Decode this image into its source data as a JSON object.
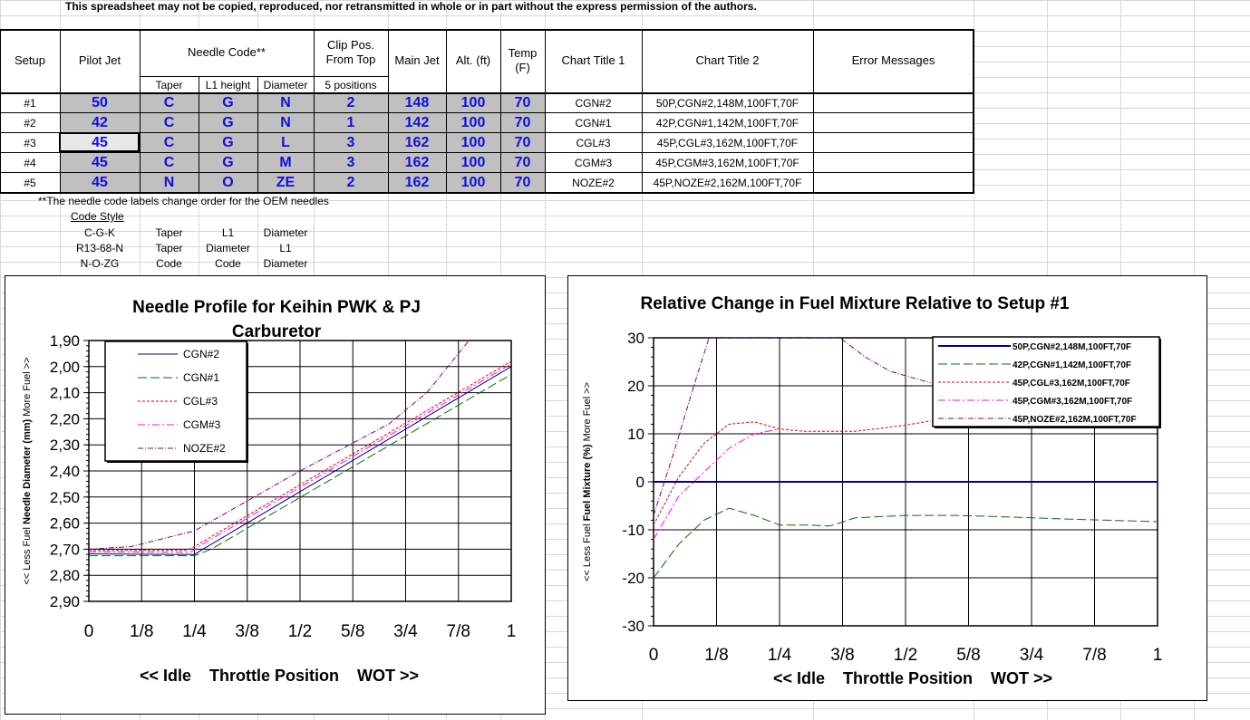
{
  "notice": "This spreadsheet may not be copied, reproduced, nor retransmitted in whole or in part without the express permission of the authors.",
  "headers": {
    "setup": "Setup",
    "pilot_jet": "Pilot Jet",
    "needle_code": "Needle Code**",
    "clip_pos": [
      "Clip Pos.",
      "From Top"
    ],
    "main_jet": "Main Jet",
    "alt": "Alt. (ft)",
    "temp": [
      "Temp",
      "(F)"
    ],
    "chart_title_1": "Chart Title 1",
    "chart_title_2": "Chart Title 2",
    "error_messages": "Error Messages",
    "taper": "Taper",
    "l1_height": "L1 height",
    "diameter": "Diameter",
    "positions": "5 positions"
  },
  "rows": [
    {
      "setup": "#1",
      "pilot": "50",
      "taper": "C",
      "l1": "G",
      "dia": "N",
      "clip": "2",
      "main": "148",
      "alt": "100",
      "temp": "70",
      "t1": "CGN#2",
      "t2": "50P,CGN#2,148M,100FT,70F"
    },
    {
      "setup": "#2",
      "pilot": "42",
      "taper": "C",
      "l1": "G",
      "dia": "N",
      "clip": "1",
      "main": "142",
      "alt": "100",
      "temp": "70",
      "t1": "CGN#1",
      "t2": "42P,CGN#1,142M,100FT,70F"
    },
    {
      "setup": "#3",
      "pilot": "45",
      "taper": "C",
      "l1": "G",
      "dia": "L",
      "clip": "3",
      "main": "162",
      "alt": "100",
      "temp": "70",
      "t1": "CGL#3",
      "t2": "45P,CGL#3,162M,100FT,70F"
    },
    {
      "setup": "#4",
      "pilot": "45",
      "taper": "C",
      "l1": "G",
      "dia": "M",
      "clip": "3",
      "main": "162",
      "alt": "100",
      "temp": "70",
      "t1": "CGM#3",
      "t2": "45P,CGM#3,162M,100FT,70F"
    },
    {
      "setup": "#5",
      "pilot": "45",
      "taper": "N",
      "l1": "O",
      "dia": "ZE",
      "clip": "2",
      "main": "162",
      "alt": "100",
      "temp": "70",
      "t1": "NOZE#2",
      "t2": "45P,NOZE#2,162M,100FT,70F"
    }
  ],
  "footnote": "**The needle code labels change order for the OEM needles",
  "code_style": {
    "title": "Code Style",
    "rows": [
      [
        "C-G-K",
        "Taper",
        "L1",
        "Diameter"
      ],
      [
        "R13-68-N",
        "Taper",
        "Diameter",
        "L1"
      ],
      [
        "N-O-ZG",
        "Code",
        "Code",
        "Diameter"
      ]
    ]
  },
  "colors": {
    "blue_value": "#1010d8",
    "cell_gray": "#c0c0c0",
    "s1": "#000080",
    "s2": "#007000",
    "s3": "#e00000",
    "s4": "#ff00ff",
    "s5": "#800080"
  },
  "chart_data": [
    {
      "type": "line",
      "title": "Needle Profile for Keihin PWK & PJ Carburetor",
      "xlabel": "<< Idle    Throttle Position    WOT >>",
      "ylabel_prefix": "<< Less Fuel",
      "ylabel_main": "Needle Diameter (mm)",
      "ylabel_suffix": "More Fuel >>",
      "x_ticks": [
        "0",
        "1/8",
        "1/4",
        "3/8",
        "1/2",
        "5/8",
        "3/4",
        "7/8",
        "1"
      ],
      "y_ticks": [
        "1,90",
        "2,00",
        "2,10",
        "2,20",
        "2,30",
        "2,40",
        "2,50",
        "2,60",
        "2,70",
        "2,80",
        "2,90"
      ],
      "ylim": [
        2.9,
        1.9
      ],
      "y_reversed": true,
      "legend_position": "top-left",
      "series": [
        {
          "name": "CGN#2",
          "x": [
            0,
            0.25,
            0.27,
            1
          ],
          "y": [
            2.718,
            2.72,
            2.7,
            2.0
          ]
        },
        {
          "name": "CGN#1",
          "x": [
            0,
            0.25,
            0.29,
            1
          ],
          "y": [
            2.725,
            2.725,
            2.7,
            2.03
          ]
        },
        {
          "name": "CGL#3",
          "x": [
            0,
            0.23,
            0.25,
            1
          ],
          "y": [
            2.705,
            2.705,
            2.69,
            1.98
          ]
        },
        {
          "name": "CGM#3",
          "x": [
            0,
            0.24,
            0.26,
            1
          ],
          "y": [
            2.71,
            2.712,
            2.69,
            1.99
          ]
        },
        {
          "name": "NOZE#2",
          "x": [
            0,
            0.1,
            0.25,
            0.5,
            0.71,
            0.8,
            0.9
          ],
          "y": [
            2.7,
            2.69,
            2.63,
            2.4,
            2.22,
            2.1,
            1.9
          ]
        }
      ]
    },
    {
      "type": "line",
      "title": "Relative Change in Fuel Mixture Relative to Setup #1",
      "xlabel": "<< Idle    Throttle Position    WOT >>",
      "ylabel_prefix": "<< Less Fuel",
      "ylabel_main": "Fuel Mixture (%)",
      "ylabel_suffix": "More Fuel >>",
      "x_ticks": [
        "0",
        "1/8",
        "1/4",
        "3/8",
        "1/2",
        "5/8",
        "3/4",
        "7/8",
        "1"
      ],
      "y_ticks": [
        "30",
        "20",
        "10",
        "0",
        "-10",
        "-20",
        "-30"
      ],
      "ylim": [
        -30,
        30
      ],
      "legend_position": "top-right",
      "series": [
        {
          "name": "50P,CGN#2,148M,100FT,70F",
          "x": [
            0,
            1
          ],
          "y": [
            0,
            0
          ]
        },
        {
          "name": "42P,CGN#1,142M,100FT,70F",
          "x": [
            0,
            0.05,
            0.1,
            0.15,
            0.2,
            0.25,
            0.3,
            0.35,
            0.4,
            0.5,
            0.6,
            0.7,
            0.8,
            0.9,
            1
          ],
          "y": [
            -20,
            -13,
            -8,
            -5.5,
            -7,
            -9,
            -9,
            -9.2,
            -7.5,
            -7,
            -7,
            -7.3,
            -7.7,
            -8,
            -8.3
          ]
        },
        {
          "name": "45P,CGL#3,162M,100FT,70F",
          "x": [
            0,
            0.05,
            0.1,
            0.15,
            0.2,
            0.25,
            0.3,
            0.35,
            0.4,
            0.5,
            0.55
          ],
          "y": [
            -9,
            1,
            8,
            12,
            12.5,
            11,
            10.5,
            10.5,
            10.5,
            11.8,
            12.7
          ]
        },
        {
          "name": "45P,CGM#3,162M,100FT,70F",
          "x": [
            0,
            0.05,
            0.1,
            0.15,
            0.2,
            0.25
          ],
          "y": [
            -12,
            -3,
            2,
            7,
            10,
            11
          ]
        },
        {
          "name": "45P,NOZE#2,162M,100FT,70F",
          "x": [
            0,
            0.04,
            0.08,
            0.11,
            0.37,
            0.42,
            0.47,
            0.55
          ],
          "y": [
            -7,
            6,
            20,
            30,
            30,
            26,
            23,
            20.6
          ]
        }
      ]
    }
  ]
}
